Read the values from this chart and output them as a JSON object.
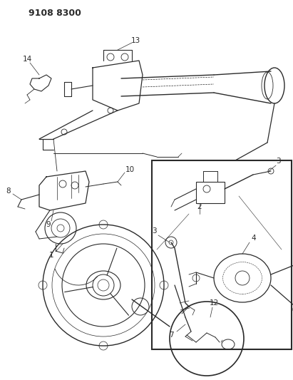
{
  "title": "9108 8300",
  "bg": "#ffffff",
  "lc": "#2a2a2a",
  "title_fs": 9,
  "label_fs": 7.5,
  "figsize": [
    4.11,
    5.33
  ],
  "dpi": 100
}
